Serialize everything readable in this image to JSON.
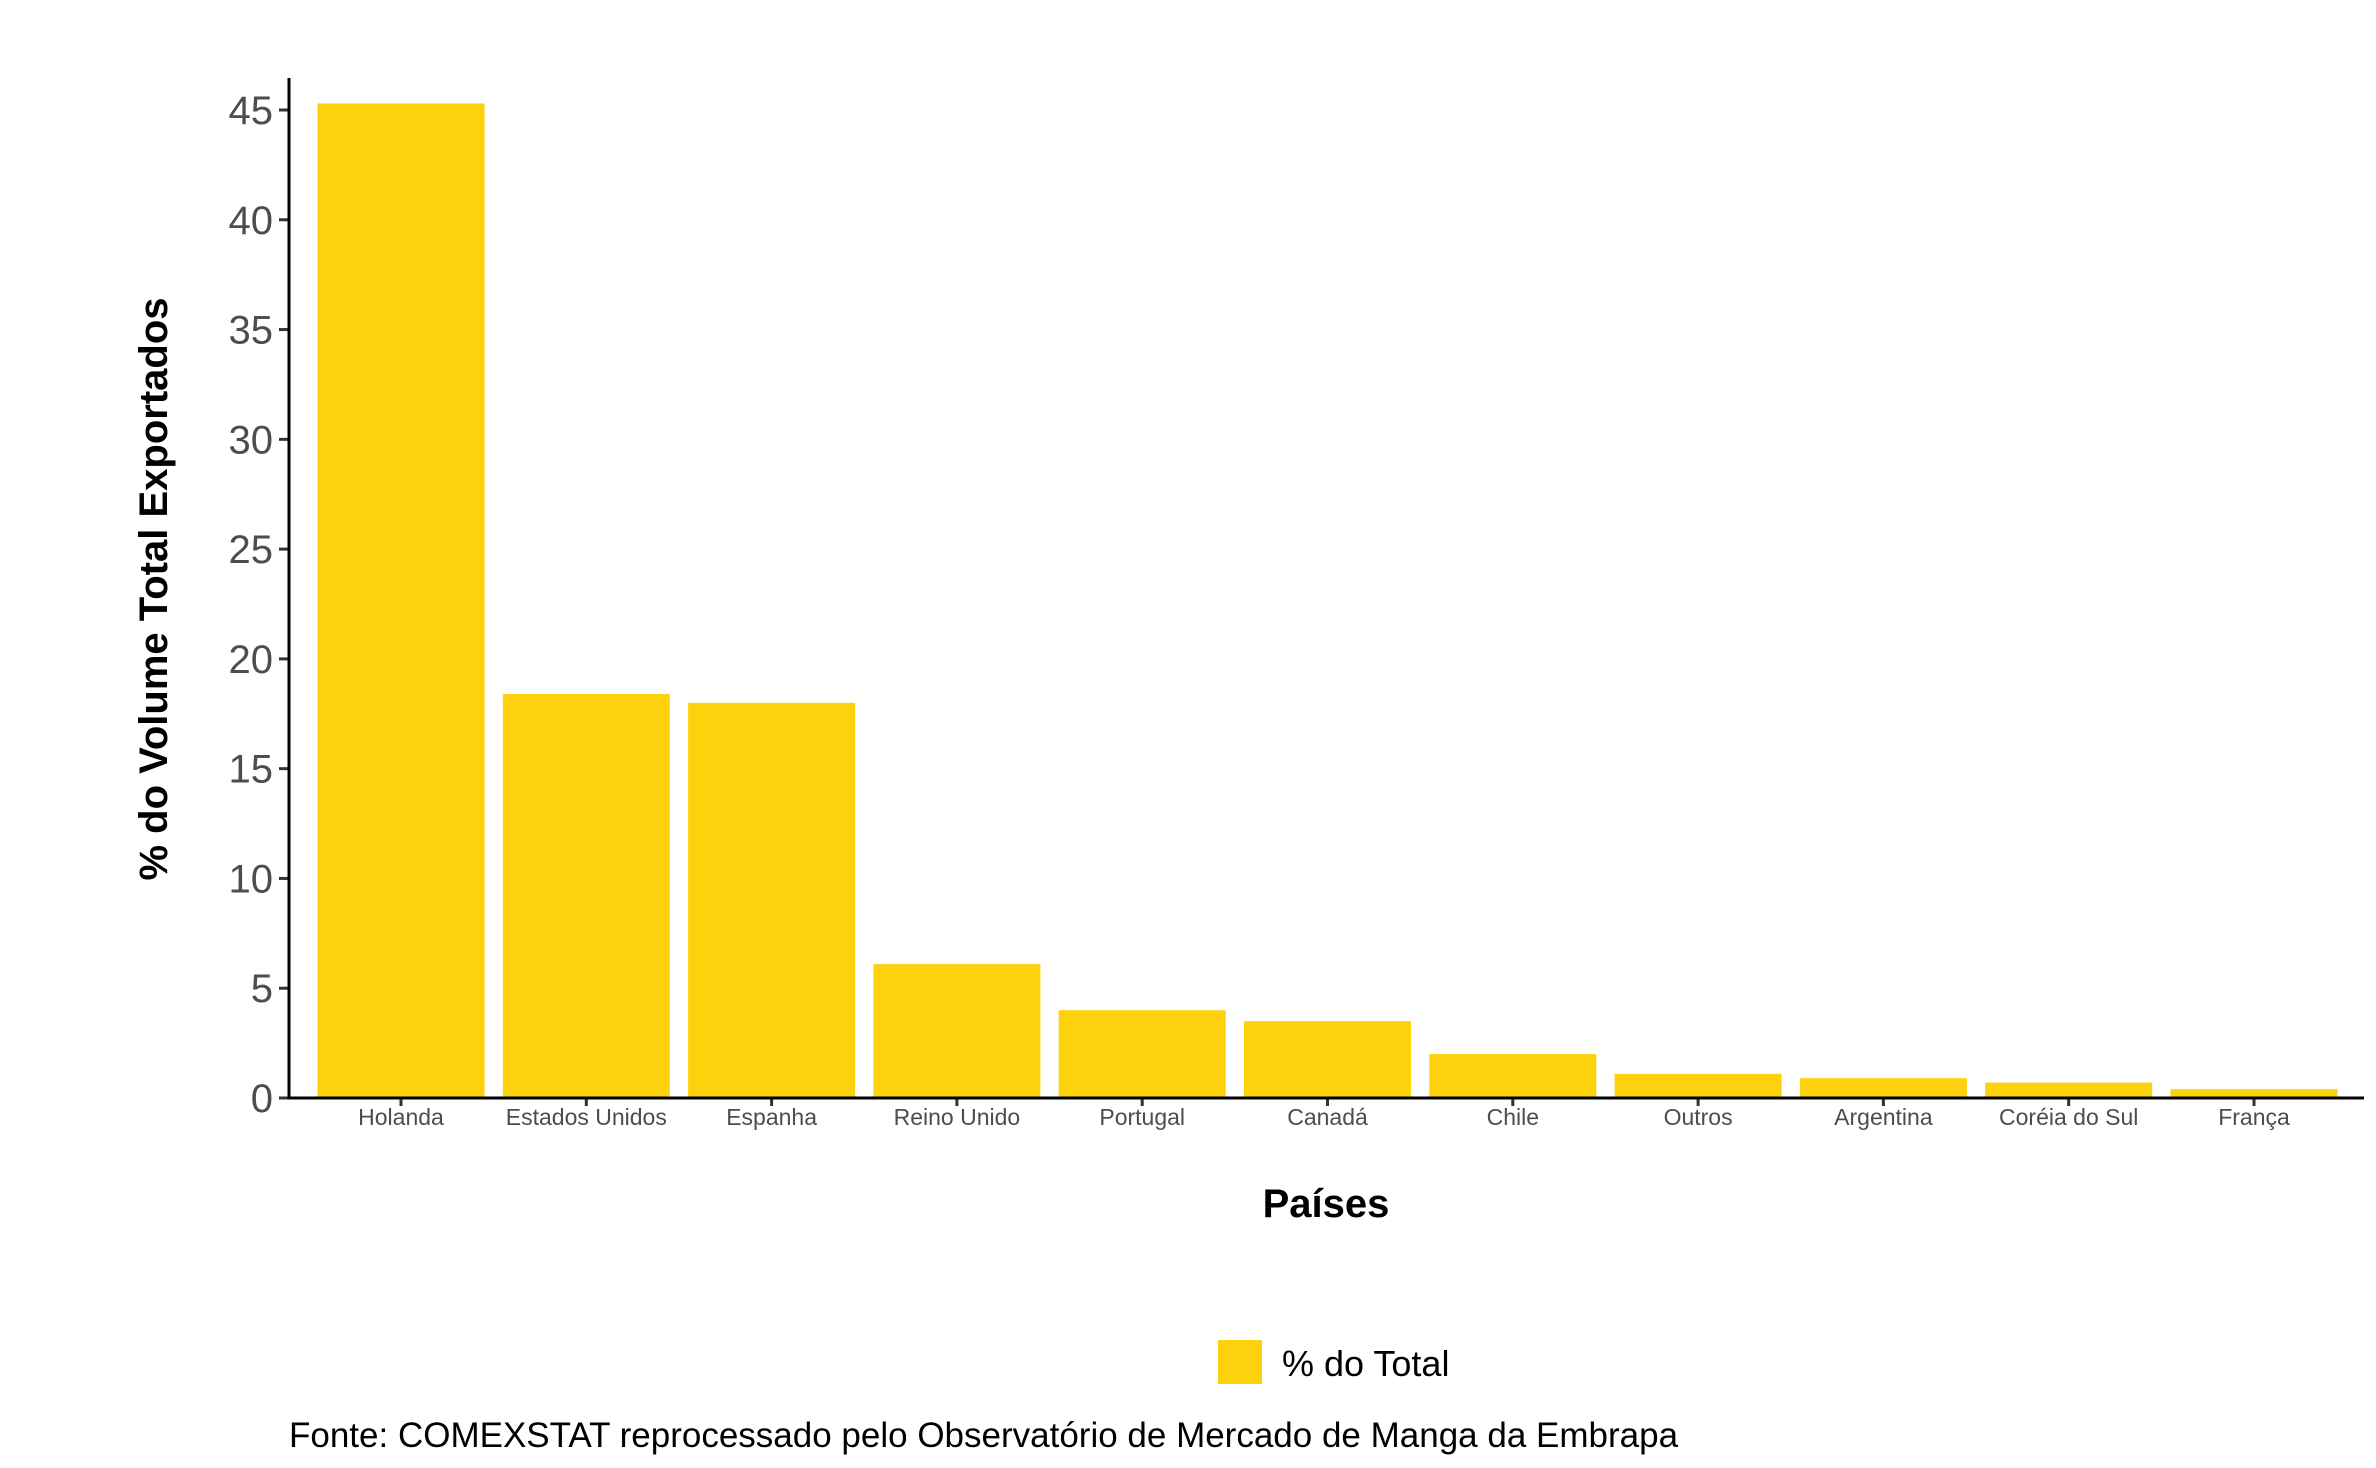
{
  "chart_data": {
    "type": "bar",
    "categories": [
      "Holanda",
      "Estados Unidos",
      "Espanha",
      "Reino Unido",
      "Portugal",
      "Canadá",
      "Chile",
      "Outros",
      "Argentina",
      "Coréia do Sul",
      "França"
    ],
    "series": [
      {
        "name": "% do Total",
        "values": [
          45.3,
          18.4,
          18.0,
          6.1,
          4.0,
          3.5,
          2.0,
          1.1,
          0.9,
          0.7,
          0.4
        ]
      }
    ],
    "title": "",
    "xlabel": "Países",
    "ylabel": "% do Volume Total Exportados",
    "ylim": [
      0,
      45
    ],
    "yticks": [
      "0",
      "5",
      "10",
      "15",
      "20",
      "25",
      "30",
      "35",
      "40",
      "45"
    ],
    "grid": false,
    "legend_position": "bottom",
    "bar_color": "#FDD20C",
    "caption": "Fonte: COMEXSTAT reprocessado pelo Observatório de Mercado de Manga da Embrapa"
  }
}
